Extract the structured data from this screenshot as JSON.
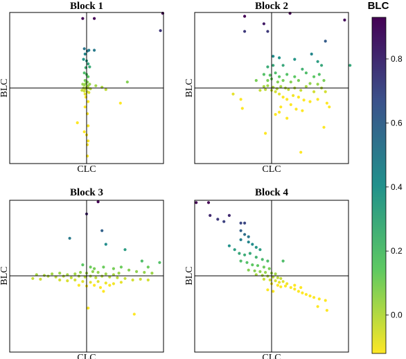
{
  "figure": {
    "colorbar": {
      "label": "BLC",
      "range": [
        -0.12,
        0.93
      ],
      "ticks": [
        0.0,
        0.2,
        0.4,
        0.6,
        0.8
      ],
      "tick_labels": [
        "0.0",
        "0.2",
        "0.4",
        "0.6",
        "0.8"
      ],
      "colormap": "viridis-reversed",
      "colormap_stops": [
        "#fde725",
        "#5ec962",
        "#21918c",
        "#3b528b",
        "#440154"
      ]
    }
  },
  "chart_data": [
    {
      "type": "scatter",
      "title": "Block 1",
      "xlabel": "CLC",
      "ylabel": "BLC",
      "xlim": [
        -1,
        1
      ],
      "ylim": [
        -1,
        1
      ],
      "axis_lines_at": [
        0,
        0
      ],
      "grid": false,
      "color_by": "y",
      "points": [
        [
          -0.05,
          0.92
        ],
        [
          0.1,
          0.92
        ],
        [
          0.99,
          0.99
        ],
        [
          0.96,
          0.76
        ],
        [
          -0.03,
          0.52
        ],
        [
          0.01,
          0.49
        ],
        [
          0.03,
          0.5
        ],
        [
          -0.02,
          0.45
        ],
        [
          0.1,
          0.5
        ],
        [
          -0.04,
          0.38
        ],
        [
          0.0,
          0.36
        ],
        [
          0.02,
          0.32
        ],
        [
          -0.01,
          0.27
        ],
        [
          0.04,
          0.28
        ],
        [
          -0.03,
          0.2
        ],
        [
          0.0,
          0.18
        ],
        [
          0.02,
          0.15
        ],
        [
          -0.02,
          0.1
        ],
        [
          0.01,
          0.08
        ],
        [
          -0.05,
          0.05
        ],
        [
          -0.03,
          0.04
        ],
        [
          -0.01,
          0.06
        ],
        [
          0.02,
          0.03
        ],
        [
          0.04,
          0.05
        ],
        [
          -0.04,
          0.0
        ],
        [
          -0.02,
          -0.01
        ],
        [
          0.0,
          0.01
        ],
        [
          0.02,
          0.0
        ],
        [
          0.05,
          -0.01
        ],
        [
          -0.06,
          -0.03
        ],
        [
          -0.03,
          -0.04
        ],
        [
          0.01,
          -0.05
        ],
        [
          -0.02,
          -0.08
        ],
        [
          0.03,
          -0.06
        ],
        [
          0.12,
          0.03
        ],
        [
          0.2,
          0.01
        ],
        [
          0.25,
          -0.02
        ],
        [
          0.53,
          0.08
        ],
        [
          0.44,
          -0.2
        ],
        [
          -0.01,
          -0.12
        ],
        [
          0.02,
          -0.18
        ],
        [
          -0.02,
          -0.25
        ],
        [
          0.01,
          -0.34
        ],
        [
          -0.12,
          -0.46
        ],
        [
          0.02,
          -0.5
        ],
        [
          -0.03,
          -0.58
        ],
        [
          0.0,
          -0.62
        ],
        [
          0.02,
          -0.7
        ],
        [
          0.01,
          -0.75
        ],
        [
          0.01,
          -0.9
        ]
      ]
    },
    {
      "type": "scatter",
      "title": "Block 2",
      "xlabel": "CLC",
      "ylabel": "BLC",
      "xlim": [
        -1,
        1
      ],
      "ylim": [
        -1,
        1
      ],
      "axis_lines_at": [
        0,
        0
      ],
      "grid": false,
      "color_by": "y",
      "points": [
        [
          -0.35,
          0.95
        ],
        [
          0.24,
          0.99
        ],
        [
          0.95,
          0.9
        ],
        [
          -0.35,
          0.75
        ],
        [
          -0.1,
          0.85
        ],
        [
          -0.05,
          0.75
        ],
        [
          0.7,
          0.62
        ],
        [
          0.52,
          0.45
        ],
        [
          0.02,
          0.42
        ],
        [
          0.1,
          0.4
        ],
        [
          0.3,
          0.38
        ],
        [
          0.02,
          0.3
        ],
        [
          -0.05,
          0.28
        ],
        [
          1.02,
          0.3
        ],
        [
          0.6,
          0.35
        ],
        [
          0.65,
          0.3
        ],
        [
          0.15,
          0.3
        ],
        [
          0.4,
          0.25
        ],
        [
          -0.1,
          0.18
        ],
        [
          -0.02,
          0.17
        ],
        [
          0.05,
          0.2
        ],
        [
          0.1,
          0.15
        ],
        [
          0.2,
          0.18
        ],
        [
          0.3,
          0.15
        ],
        [
          0.45,
          0.2
        ],
        [
          0.55,
          0.15
        ],
        [
          0.62,
          0.18
        ],
        [
          0.68,
          0.1
        ],
        [
          -0.2,
          0.1
        ],
        [
          -0.05,
          0.1
        ],
        [
          0.0,
          0.12
        ],
        [
          0.08,
          0.08
        ],
        [
          0.15,
          0.1
        ],
        [
          0.25,
          0.08
        ],
        [
          0.35,
          0.1
        ],
        [
          0.5,
          0.06
        ],
        [
          0.6,
          0.05
        ],
        [
          0.65,
          0.0
        ],
        [
          -0.1,
          0.02
        ],
        [
          -0.05,
          0.03
        ],
        [
          0.02,
          0.01
        ],
        [
          0.07,
          -0.01
        ],
        [
          0.12,
          0.02
        ],
        [
          0.18,
          0.0
        ],
        [
          0.22,
          -0.02
        ],
        [
          0.3,
          0.0
        ],
        [
          0.38,
          -0.03
        ],
        [
          0.45,
          0.02
        ],
        [
          0.55,
          -0.05
        ],
        [
          0.7,
          -0.05
        ],
        [
          -0.15,
          -0.03
        ],
        [
          -0.08,
          -0.02
        ],
        [
          0.0,
          -0.03
        ],
        [
          0.05,
          -0.05
        ],
        [
          0.1,
          -0.08
        ],
        [
          0.15,
          -0.12
        ],
        [
          0.2,
          -0.15
        ],
        [
          0.28,
          -0.1
        ],
        [
          0.35,
          -0.12
        ],
        [
          0.42,
          -0.16
        ],
        [
          0.5,
          -0.18
        ],
        [
          0.6,
          -0.15
        ],
        [
          0.72,
          -0.2
        ],
        [
          0.75,
          -0.25
        ],
        [
          -0.5,
          -0.08
        ],
        [
          -0.4,
          -0.15
        ],
        [
          -0.38,
          -0.27
        ],
        [
          0.12,
          -0.25
        ],
        [
          0.25,
          -0.22
        ],
        [
          0.32,
          -0.28
        ],
        [
          0.1,
          -0.32
        ],
        [
          0.05,
          -0.35
        ],
        [
          0.2,
          -0.4
        ],
        [
          0.4,
          -0.3
        ],
        [
          0.68,
          -0.52
        ],
        [
          -0.08,
          -0.6
        ],
        [
          0.38,
          -0.85
        ]
      ]
    },
    {
      "type": "scatter",
      "title": "Block 3",
      "xlabel": "CLC",
      "ylabel": "BLC",
      "xlim": [
        -1,
        1
      ],
      "ylim": [
        -1,
        1
      ],
      "axis_lines_at": [
        0,
        0
      ],
      "grid": false,
      "color_by": "y",
      "points": [
        [
          0.15,
          0.98
        ],
        [
          0.0,
          0.82
        ],
        [
          0.2,
          0.6
        ],
        [
          -0.22,
          0.5
        ],
        [
          0.25,
          0.42
        ],
        [
          0.5,
          0.35
        ],
        [
          0.72,
          0.2
        ],
        [
          0.95,
          0.18
        ],
        [
          0.8,
          0.12
        ],
        [
          -0.05,
          0.15
        ],
        [
          0.05,
          0.12
        ],
        [
          0.1,
          0.1
        ],
        [
          0.22,
          0.12
        ],
        [
          0.35,
          0.1
        ],
        [
          0.45,
          0.12
        ],
        [
          0.55,
          0.08
        ],
        [
          0.65,
          0.06
        ],
        [
          0.75,
          0.05
        ],
        [
          0.85,
          0.04
        ],
        [
          -0.45,
          0.03
        ],
        [
          -0.35,
          0.04
        ],
        [
          -0.25,
          0.02
        ],
        [
          -0.15,
          0.03
        ],
        [
          -0.08,
          0.05
        ],
        [
          0.0,
          0.04
        ],
        [
          0.08,
          0.06
        ],
        [
          0.15,
          0.05
        ],
        [
          0.25,
          0.03
        ],
        [
          0.35,
          0.02
        ],
        [
          0.42,
          0.04
        ],
        [
          -0.65,
          0.02
        ],
        [
          -0.55,
          0.01
        ],
        [
          -0.5,
          0.0
        ],
        [
          -0.4,
          -0.01
        ],
        [
          -0.3,
          0.0
        ],
        [
          -0.2,
          -0.02
        ],
        [
          -0.1,
          0.0
        ],
        [
          -0.02,
          -0.01
        ],
        [
          0.05,
          0.0
        ],
        [
          0.12,
          -0.02
        ],
        [
          0.2,
          0.0
        ],
        [
          0.3,
          -0.01
        ],
        [
          0.4,
          -0.02
        ],
        [
          0.5,
          -0.03
        ],
        [
          0.6,
          -0.05
        ],
        [
          0.7,
          -0.04
        ],
        [
          0.8,
          -0.05
        ],
        [
          -0.7,
          -0.03
        ],
        [
          -0.6,
          -0.04
        ],
        [
          -0.35,
          -0.05
        ],
        [
          -0.25,
          -0.06
        ],
        [
          -0.15,
          -0.05
        ],
        [
          -0.05,
          -0.07
        ],
        [
          0.05,
          -0.08
        ],
        [
          0.15,
          -0.07
        ],
        [
          0.25,
          -0.09
        ],
        [
          0.35,
          -0.1
        ],
        [
          0.45,
          -0.08
        ],
        [
          -0.1,
          -0.12
        ],
        [
          0.0,
          -0.13
        ],
        [
          0.1,
          -0.12
        ],
        [
          0.18,
          -0.15
        ],
        [
          0.3,
          -0.12
        ],
        [
          0.22,
          -0.2
        ],
        [
          0.02,
          -0.42
        ],
        [
          0.62,
          -0.5
        ]
      ]
    },
    {
      "type": "scatter",
      "title": "Block 4",
      "xlabel": "CLC",
      "ylabel": "BLC",
      "xlim": [
        -1,
        1
      ],
      "ylim": [
        -1,
        1
      ],
      "axis_lines_at": [
        0,
        0
      ],
      "grid": false,
      "color_by": "y",
      "points": [
        [
          -0.98,
          0.97
        ],
        [
          -0.82,
          0.97
        ],
        [
          -0.8,
          0.8
        ],
        [
          -0.7,
          0.75
        ],
        [
          -0.62,
          0.72
        ],
        [
          -0.55,
          0.8
        ],
        [
          -0.4,
          0.7
        ],
        [
          -0.35,
          0.7
        ],
        [
          -0.4,
          0.6
        ],
        [
          -0.35,
          0.55
        ],
        [
          -0.3,
          0.52
        ],
        [
          -0.4,
          0.48
        ],
        [
          -0.3,
          0.45
        ],
        [
          -0.25,
          0.42
        ],
        [
          -0.2,
          0.38
        ],
        [
          -0.15,
          0.35
        ],
        [
          -0.55,
          0.4
        ],
        [
          -0.48,
          0.35
        ],
        [
          -0.42,
          0.3
        ],
        [
          -0.35,
          0.28
        ],
        [
          -0.28,
          0.3
        ],
        [
          -0.2,
          0.25
        ],
        [
          -0.12,
          0.22
        ],
        [
          -0.05,
          0.2
        ],
        [
          0.15,
          0.2
        ],
        [
          -0.4,
          0.2
        ],
        [
          -0.32,
          0.18
        ],
        [
          -0.25,
          0.15
        ],
        [
          -0.18,
          0.14
        ],
        [
          -0.1,
          0.12
        ],
        [
          -0.03,
          0.1
        ],
        [
          -0.3,
          0.08
        ],
        [
          -0.22,
          0.07
        ],
        [
          -0.15,
          0.06
        ],
        [
          -0.08,
          0.05
        ],
        [
          0.0,
          0.04
        ],
        [
          0.05,
          0.03
        ],
        [
          -0.2,
          0.02
        ],
        [
          -0.12,
          0.01
        ],
        [
          -0.05,
          0.0
        ],
        [
          0.02,
          -0.01
        ],
        [
          0.08,
          -0.02
        ],
        [
          0.12,
          -0.03
        ],
        [
          -0.1,
          -0.04
        ],
        [
          -0.02,
          -0.05
        ],
        [
          0.05,
          -0.06
        ],
        [
          0.1,
          -0.08
        ],
        [
          0.15,
          -0.07
        ],
        [
          0.2,
          -0.1
        ],
        [
          0.0,
          -0.1
        ],
        [
          0.08,
          -0.12
        ],
        [
          0.12,
          -0.14
        ],
        [
          0.18,
          -0.13
        ],
        [
          0.25,
          -0.15
        ],
        [
          0.3,
          -0.17
        ],
        [
          0.35,
          -0.2
        ],
        [
          0.4,
          -0.22
        ],
        [
          0.45,
          -0.24
        ],
        [
          0.5,
          -0.26
        ],
        [
          0.55,
          -0.28
        ],
        [
          0.62,
          -0.3
        ],
        [
          0.7,
          -0.32
        ],
        [
          0.6,
          -0.4
        ],
        [
          -0.05,
          -0.18
        ],
        [
          0.02,
          -0.2
        ],
        [
          0.3,
          -0.12
        ],
        [
          0.38,
          -0.15
        ],
        [
          0.72,
          -0.45
        ]
      ]
    }
  ]
}
